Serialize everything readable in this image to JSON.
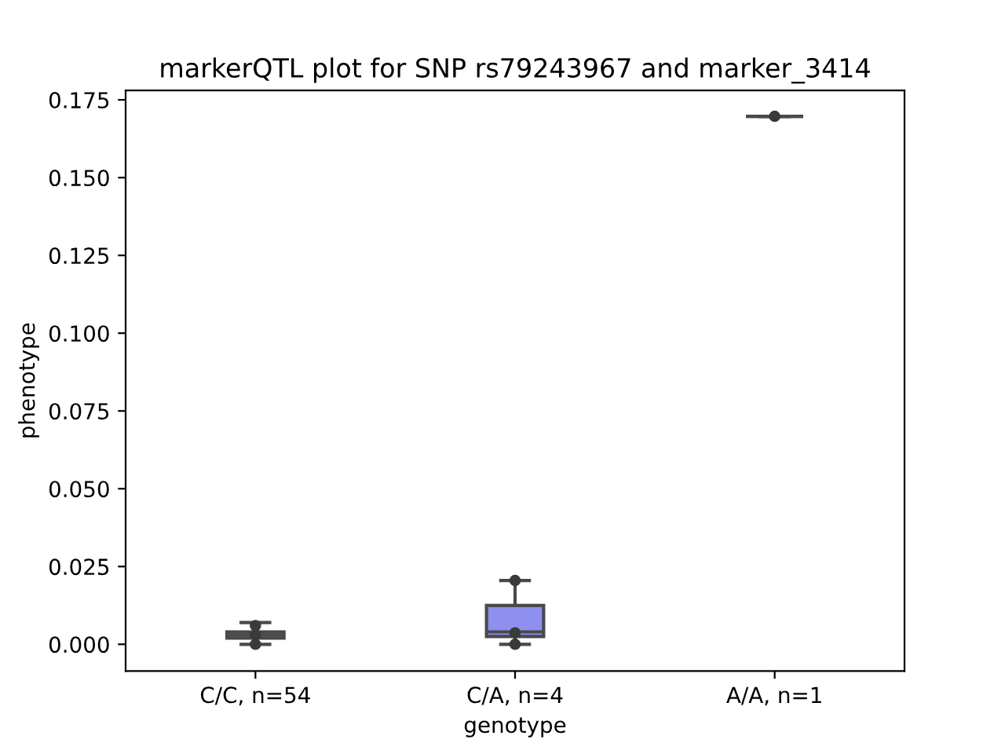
{
  "chart_data": {
    "type": "box",
    "title": "markerQTL plot for SNP rs79243967 and marker_3414",
    "xlabel": "genotype",
    "ylabel": "phenotype",
    "categories": [
      "C/C, n=54",
      "C/A, n=4",
      "A/A, n=1"
    ],
    "colors": [
      "#8f8ff0",
      "#8f8ff0",
      null
    ],
    "boxes": [
      {
        "low": 0.0,
        "q1": 0.002,
        "median": 0.003,
        "q3": 0.004,
        "high": 0.007
      },
      {
        "low": 0.0,
        "q1": 0.0025,
        "median": 0.004,
        "q3": 0.0125,
        "high": 0.0205
      },
      {
        "low": 0.1697,
        "q1": 0.1697,
        "median": 0.1697,
        "q3": 0.1697,
        "high": 0.1697
      }
    ],
    "series": [
      {
        "type": "scatter",
        "color": "#3a3a3a",
        "x": [
          "C/C, n=54",
          "C/C, n=54",
          "C/C, n=54",
          "C/A, n=4",
          "C/A, n=4",
          "C/A, n=4",
          "A/A, n=1"
        ],
        "values": [
          0.0,
          0.003,
          0.006,
          0.0,
          0.0037,
          0.0205,
          0.1697
        ]
      }
    ],
    "ylim": [
      -0.0086,
      0.178
    ],
    "yticks": [
      {
        "value": 0,
        "label": "0.000"
      },
      {
        "value": 0.025,
        "label": "0.025"
      },
      {
        "value": 0.05,
        "label": "0.050"
      },
      {
        "value": 0.075,
        "label": "0.075"
      },
      {
        "value": 0.1,
        "label": "0.100"
      },
      {
        "value": 0.125,
        "label": "0.125"
      },
      {
        "value": 0.15,
        "label": "0.150"
      },
      {
        "value": 0.175,
        "label": "0.175"
      }
    ],
    "grid": false,
    "marker": "circle"
  }
}
